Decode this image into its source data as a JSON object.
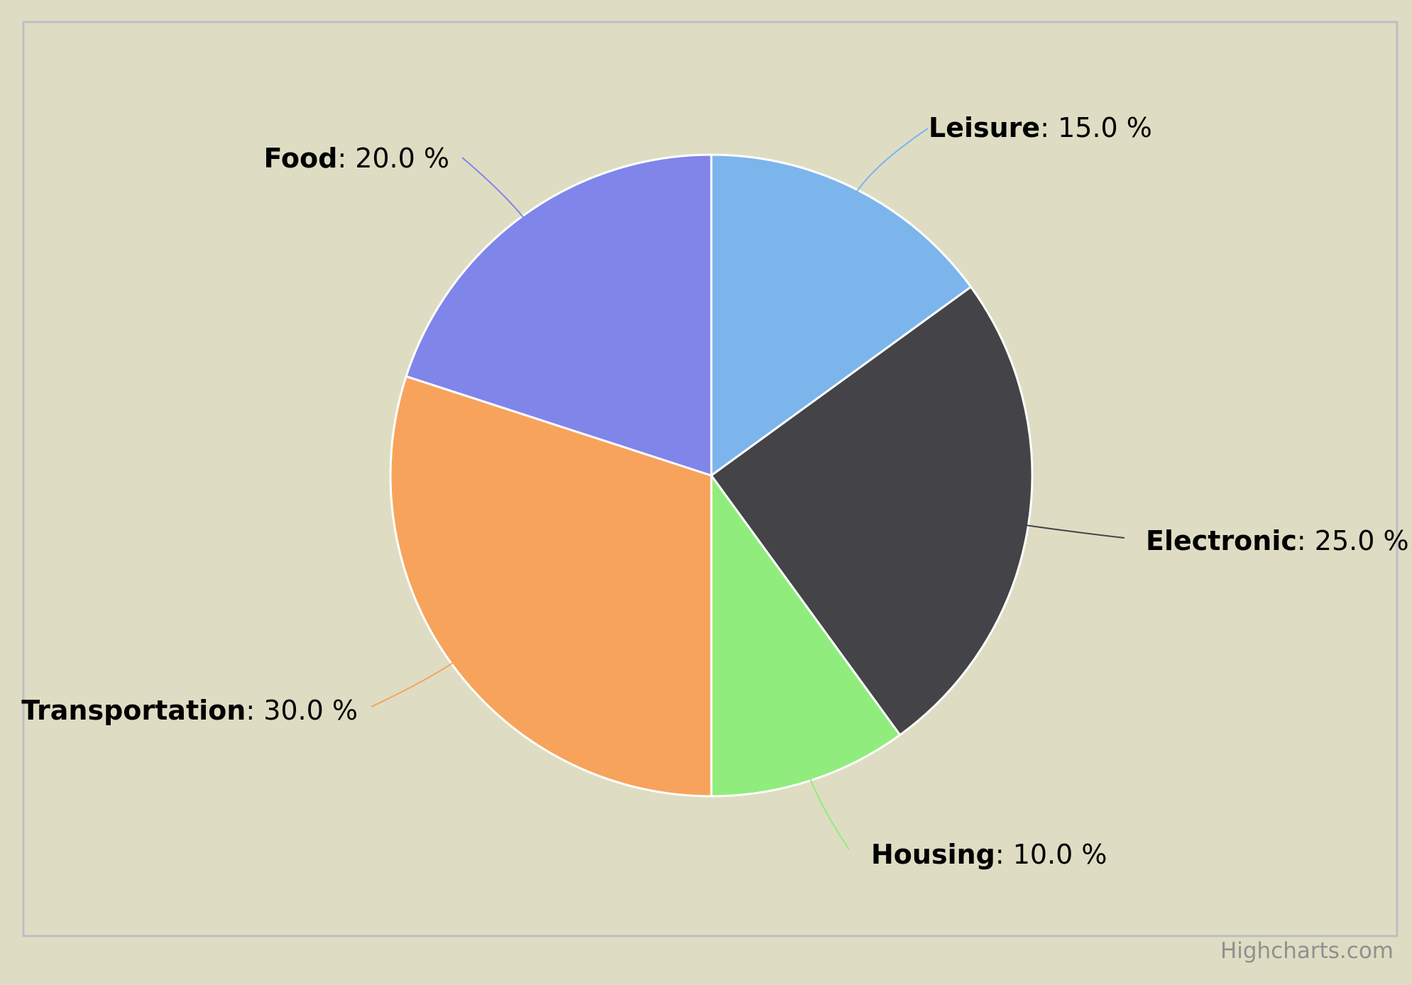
{
  "chart_data": {
    "type": "pie",
    "start_angle_deg": 0,
    "series": [
      {
        "values": [
          {
            "name": "Leisure",
            "value": 15.0,
            "label": "15.0 %",
            "color": "#7cb5ec"
          },
          {
            "name": "Electronic",
            "value": 25.0,
            "label": "25.0 %",
            "color": "#434348"
          },
          {
            "name": "Housing",
            "value": 10.0,
            "label": "10.0 %",
            "color": "#90ed7d"
          },
          {
            "name": "Transportation",
            "value": 30.0,
            "label": "30.0 %",
            "color": "#f7a35c"
          },
          {
            "name": "Food",
            "value": 20.0,
            "label": "20.0 %",
            "color": "#8085e9"
          }
        ]
      }
    ],
    "separator": ": ",
    "legend": "none",
    "grid": false
  },
  "colors": {
    "background": "#deddc3",
    "slice_border": "#ffffff",
    "frame": "#bcbfc4",
    "label_text": "#000000",
    "credits_text": "#909090"
  },
  "credits": {
    "text": "Highcharts.com"
  }
}
